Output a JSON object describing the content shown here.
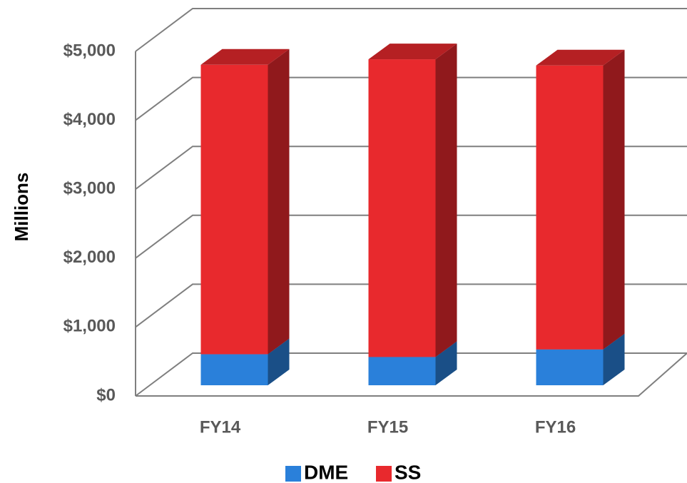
{
  "chart_data": {
    "type": "bar3d_stacked",
    "y_label": "Millions",
    "categories": [
      "FY14",
      "FY15",
      "FY16"
    ],
    "series": [
      {
        "name": "DME",
        "color": "#2a80da",
        "values": [
          450,
          410,
          520
        ]
      },
      {
        "name": "SS",
        "color": "#e8292d",
        "values": [
          4200,
          4320,
          4120
        ]
      }
    ],
    "ylim": [
      0,
      5000
    ],
    "yticks": [
      {
        "value": 0,
        "label": "$0"
      },
      {
        "value": 1000,
        "label": "$1,000"
      },
      {
        "value": 2000,
        "label": "$2,000"
      },
      {
        "value": 3000,
        "label": "$3,000"
      },
      {
        "value": 4000,
        "label": "$4,000"
      },
      {
        "value": 5000,
        "label": "$5,000"
      }
    ],
    "grid": true,
    "legend": "bottom"
  }
}
